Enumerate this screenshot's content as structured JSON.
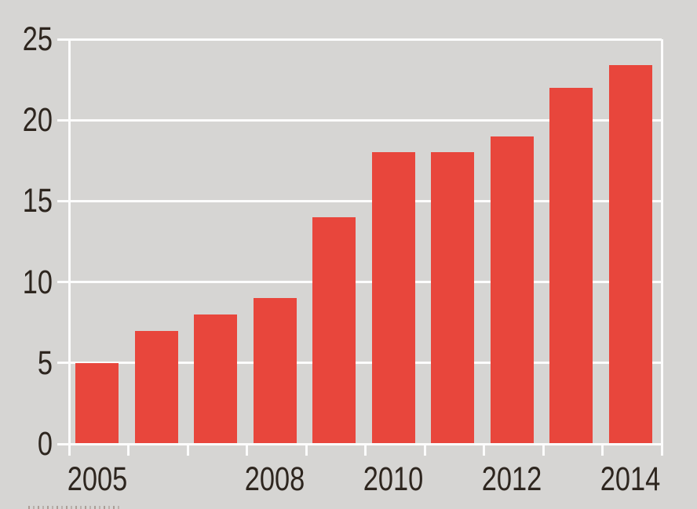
{
  "chart_data": {
    "type": "bar",
    "categories": [
      "2005",
      "2006",
      "2007",
      "2008",
      "2009",
      "2010",
      "2011",
      "2012",
      "2013",
      "2014"
    ],
    "values": [
      5,
      7,
      8,
      9,
      14,
      18,
      18,
      19,
      22,
      23.4
    ],
    "x_tick_labels_shown": [
      "2005",
      "2008",
      "2010",
      "2012",
      "2014"
    ],
    "y_ticks": [
      0,
      5,
      10,
      15,
      20,
      25
    ],
    "ylim": [
      0,
      25
    ],
    "title": "",
    "xlabel": "",
    "ylabel": "",
    "legend": "none",
    "grid": "horizontal",
    "colors": {
      "bar": "#e8463c",
      "background": "#d6d5d3",
      "gridline": "#fcfcfc",
      "text": "#2e261f"
    }
  }
}
